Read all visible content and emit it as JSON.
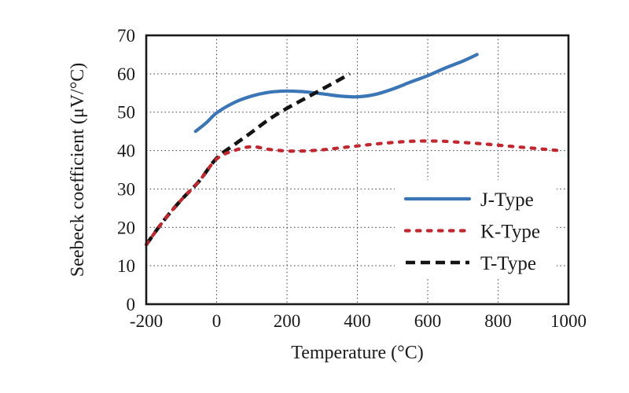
{
  "chart_data": {
    "type": "line",
    "title": "",
    "xlabel": "Temperature (°C)",
    "ylabel": "Seebeck coefficient (μV/°C)",
    "xlim": [
      -200,
      1000
    ],
    "ylim": [
      0,
      70
    ],
    "xticks": [
      "-200",
      "0",
      "200",
      "400",
      "600",
      "800",
      "1000"
    ],
    "yticks": [
      "0",
      "10",
      "20",
      "30",
      "40",
      "50",
      "60",
      "70"
    ],
    "xtick_values": [
      -200,
      0,
      200,
      400,
      600,
      800,
      1000
    ],
    "ytick_values": [
      0,
      10,
      20,
      30,
      40,
      50,
      60,
      70
    ],
    "grid": true,
    "grid_style": "dotted",
    "legend_position": "lower right",
    "axis_color": "#1a1a1a",
    "grid_color": "#4d4d4d",
    "series": [
      {
        "name": "J-Type",
        "color": "#3A76B6",
        "line_style": "solid",
        "x": [
          -60,
          -30,
          0,
          50,
          100,
          150,
          200,
          250,
          300,
          350,
          400,
          450,
          500,
          550,
          600,
          650,
          700,
          740
        ],
        "y": [
          45.0,
          47.2,
          49.8,
          52.5,
          54.2,
          55.2,
          55.5,
          55.3,
          54.8,
          54.2,
          54.0,
          54.6,
          56.0,
          57.8,
          59.5,
          61.5,
          63.3,
          65.0
        ]
      },
      {
        "name": "K-Type",
        "color": "#C2262E",
        "line_style": "dotted",
        "x": [
          -200,
          -150,
          -100,
          -50,
          0,
          50,
          100,
          150,
          200,
          250,
          300,
          350,
          400,
          450,
          500,
          550,
          600,
          650,
          700,
          750,
          800,
          850,
          900,
          950,
          985
        ],
        "y": [
          15.5,
          21.8,
          27.2,
          32.0,
          37.8,
          40.0,
          41.0,
          40.3,
          39.9,
          39.9,
          40.2,
          40.7,
          41.2,
          41.7,
          42.1,
          42.4,
          42.5,
          42.4,
          42.1,
          41.8,
          41.4,
          41.0,
          40.6,
          40.2,
          39.9
        ]
      },
      {
        "name": "T-Type",
        "color": "#141414",
        "line_style": "dashed",
        "x": [
          -200,
          -150,
          -100,
          -50,
          0,
          50,
          100,
          150,
          200,
          250,
          300,
          350,
          378
        ],
        "y": [
          15.5,
          21.8,
          27.2,
          32.0,
          38.0,
          41.5,
          44.8,
          48.2,
          51.0,
          53.5,
          56.0,
          58.5,
          60.0
        ]
      }
    ]
  }
}
